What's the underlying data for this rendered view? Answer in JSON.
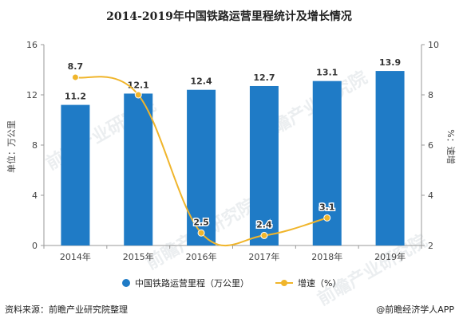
{
  "chart_data": {
    "type": "bar",
    "title": "2014-2019年中国铁路运营里程统计及增长情况",
    "categories": [
      "2014年",
      "2015年",
      "2016年",
      "2017年",
      "2018年",
      "2019年"
    ],
    "series": [
      {
        "name": "中国铁路运营里程（万公里）",
        "type": "bar",
        "axis": "left",
        "color": "#1f7bc6",
        "values": [
          11.2,
          12.1,
          12.4,
          12.7,
          13.1,
          13.9
        ]
      },
      {
        "name": "增速（%）",
        "type": "line",
        "axis": "right",
        "color": "#f0b52b",
        "values": [
          8.7,
          8.0,
          2.5,
          2.4,
          3.1,
          null
        ],
        "labels": [
          "8.7",
          "",
          "2.5",
          "2.4",
          "3.1",
          ""
        ]
      }
    ],
    "y_left": {
      "label": "单位：万公里",
      "min": 0,
      "max": 16,
      "ticks": [
        0,
        4,
        8,
        12,
        16
      ]
    },
    "y_right": {
      "label": "%：速增",
      "min": 2,
      "max": 10,
      "ticks": [
        2,
        4,
        6,
        8,
        10
      ]
    },
    "grid": false,
    "legend": "bottom-center"
  },
  "footer": {
    "source": "资料来源：前瞻产业研究院整理",
    "credit": "@前瞻经济学人APP"
  },
  "watermark": "前瞻产业研究院"
}
